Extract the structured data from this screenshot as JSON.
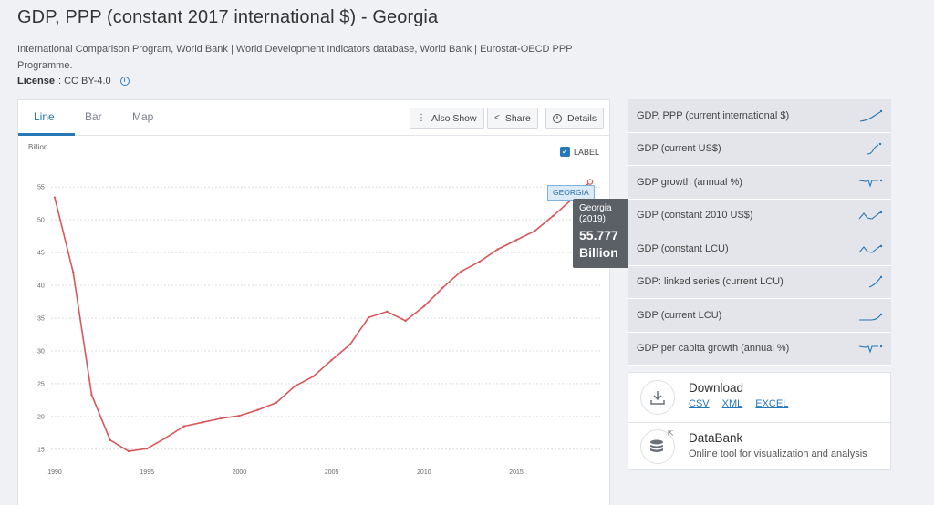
{
  "page": {
    "title": "GDP, PPP (constant 2017 international $) - Georgia",
    "source": "International Comparison Program, World Bank | World Development Indicators database, World Bank | Eurostat-OECD PPP Programme.",
    "license_label": "License",
    "license_value": ": CC BY-4.0"
  },
  "tabs": [
    {
      "label": "Line"
    },
    {
      "label": "Bar"
    },
    {
      "label": "Map"
    }
  ],
  "toolbar": {
    "also_show": "Also Show",
    "share": "Share",
    "details": "Details"
  },
  "chart_controls": {
    "label_toggle": "LABEL"
  },
  "tooltip": {
    "country": "Georgia",
    "year": "(2019)",
    "value": "55.777",
    "unit": "Billion"
  },
  "series_badge": "GEORGIA",
  "chart_data": {
    "type": "line",
    "unit_label": "Billion",
    "xlim": [
      1990,
      2019
    ],
    "ylim": [
      14,
      56
    ],
    "x_ticks": [
      1990,
      1995,
      2000,
      2005,
      2010,
      2015
    ],
    "y_ticks": [
      15,
      20,
      25,
      30,
      35,
      40,
      45,
      50,
      55
    ],
    "grid": true,
    "color": "#d9575a",
    "series": [
      {
        "name": "GEORGIA",
        "x": [
          1990,
          1991,
          1992,
          1993,
          1994,
          1995,
          1996,
          1997,
          1998,
          1999,
          2000,
          2001,
          2002,
          2003,
          2004,
          2005,
          2006,
          2007,
          2008,
          2009,
          2010,
          2011,
          2012,
          2013,
          2014,
          2015,
          2016,
          2017,
          2018,
          2019
        ],
        "values": [
          53.4,
          42.0,
          23.3,
          16.4,
          14.7,
          15.1,
          16.7,
          18.5,
          19.1,
          19.7,
          20.1,
          21.0,
          22.1,
          24.6,
          26.1,
          28.6,
          31.0,
          35.1,
          36.0,
          34.6,
          36.8,
          39.6,
          42.1,
          43.6,
          45.5,
          46.9,
          48.3,
          50.6,
          53.1,
          55.777
        ]
      }
    ]
  },
  "related_indicators": [
    {
      "label": "GDP, PPP (current international $)"
    },
    {
      "label": "GDP (current US$)"
    },
    {
      "label": "GDP growth (annual %)"
    },
    {
      "label": "GDP (constant 2010 US$)"
    },
    {
      "label": "GDP (constant LCU)"
    },
    {
      "label": "GDP: linked series (current LCU)"
    },
    {
      "label": "GDP (current LCU)"
    },
    {
      "label": "GDP per capita growth (annual %)"
    }
  ],
  "download": {
    "title": "Download",
    "links": [
      "CSV",
      "XML",
      "EXCEL"
    ]
  },
  "databank": {
    "title": "DataBank",
    "subtitle": "Online tool for visualization and analysis"
  },
  "colors": {
    "accent": "#2778b8",
    "line": "#d9575a",
    "sparkline": "#2778b8"
  }
}
